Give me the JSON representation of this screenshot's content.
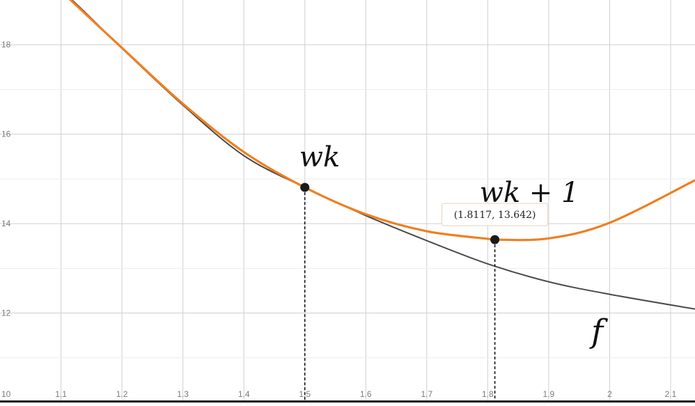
{
  "chart_data": {
    "type": "line",
    "xlim": [
      1.0,
      2.14
    ],
    "ylim": [
      10,
      19
    ],
    "x_ticks": [
      "1.1",
      "1.2",
      "1.3",
      "1.4",
      "1.5",
      "1.6",
      "1.7",
      "1.8",
      "1.9",
      "2",
      "2.1"
    ],
    "y_ticks": [
      "12",
      "14",
      "16",
      "18"
    ],
    "y_origin_label": "10",
    "grid": true,
    "curve_f": {
      "x": [
        1.0,
        1.1,
        1.2,
        1.3,
        1.4,
        1.5,
        1.6,
        1.7,
        1.8,
        1.9,
        2.0,
        2.14
      ],
      "y": [
        20.22,
        19.22,
        17.92,
        16.65,
        15.52,
        14.81,
        14.18,
        13.62,
        13.1,
        12.7,
        12.42,
        12.09
      ]
    },
    "curve_quadratic": {
      "x": [
        1.1,
        1.2,
        1.3,
        1.4,
        1.5,
        1.6,
        1.7,
        1.8,
        1.8117,
        1.9,
        2.0,
        2.14
      ],
      "y": [
        19.2,
        17.93,
        16.68,
        15.6,
        14.81,
        14.21,
        13.83,
        13.66,
        13.642,
        13.67,
        14.02,
        14.97
      ]
    },
    "points": [
      {
        "label": "wk",
        "x": 1.5,
        "y": 14.81
      },
      {
        "label": "wk + 1",
        "x": 1.8117,
        "y": 13.642
      }
    ],
    "curve_label": "f",
    "tooltip": "(1.8117, 13.642)",
    "colors": {
      "f": "#4a4a4a",
      "quadratic": "#f07f1f",
      "grid": "#cfcfcf",
      "points": "#1a1a1a"
    }
  }
}
